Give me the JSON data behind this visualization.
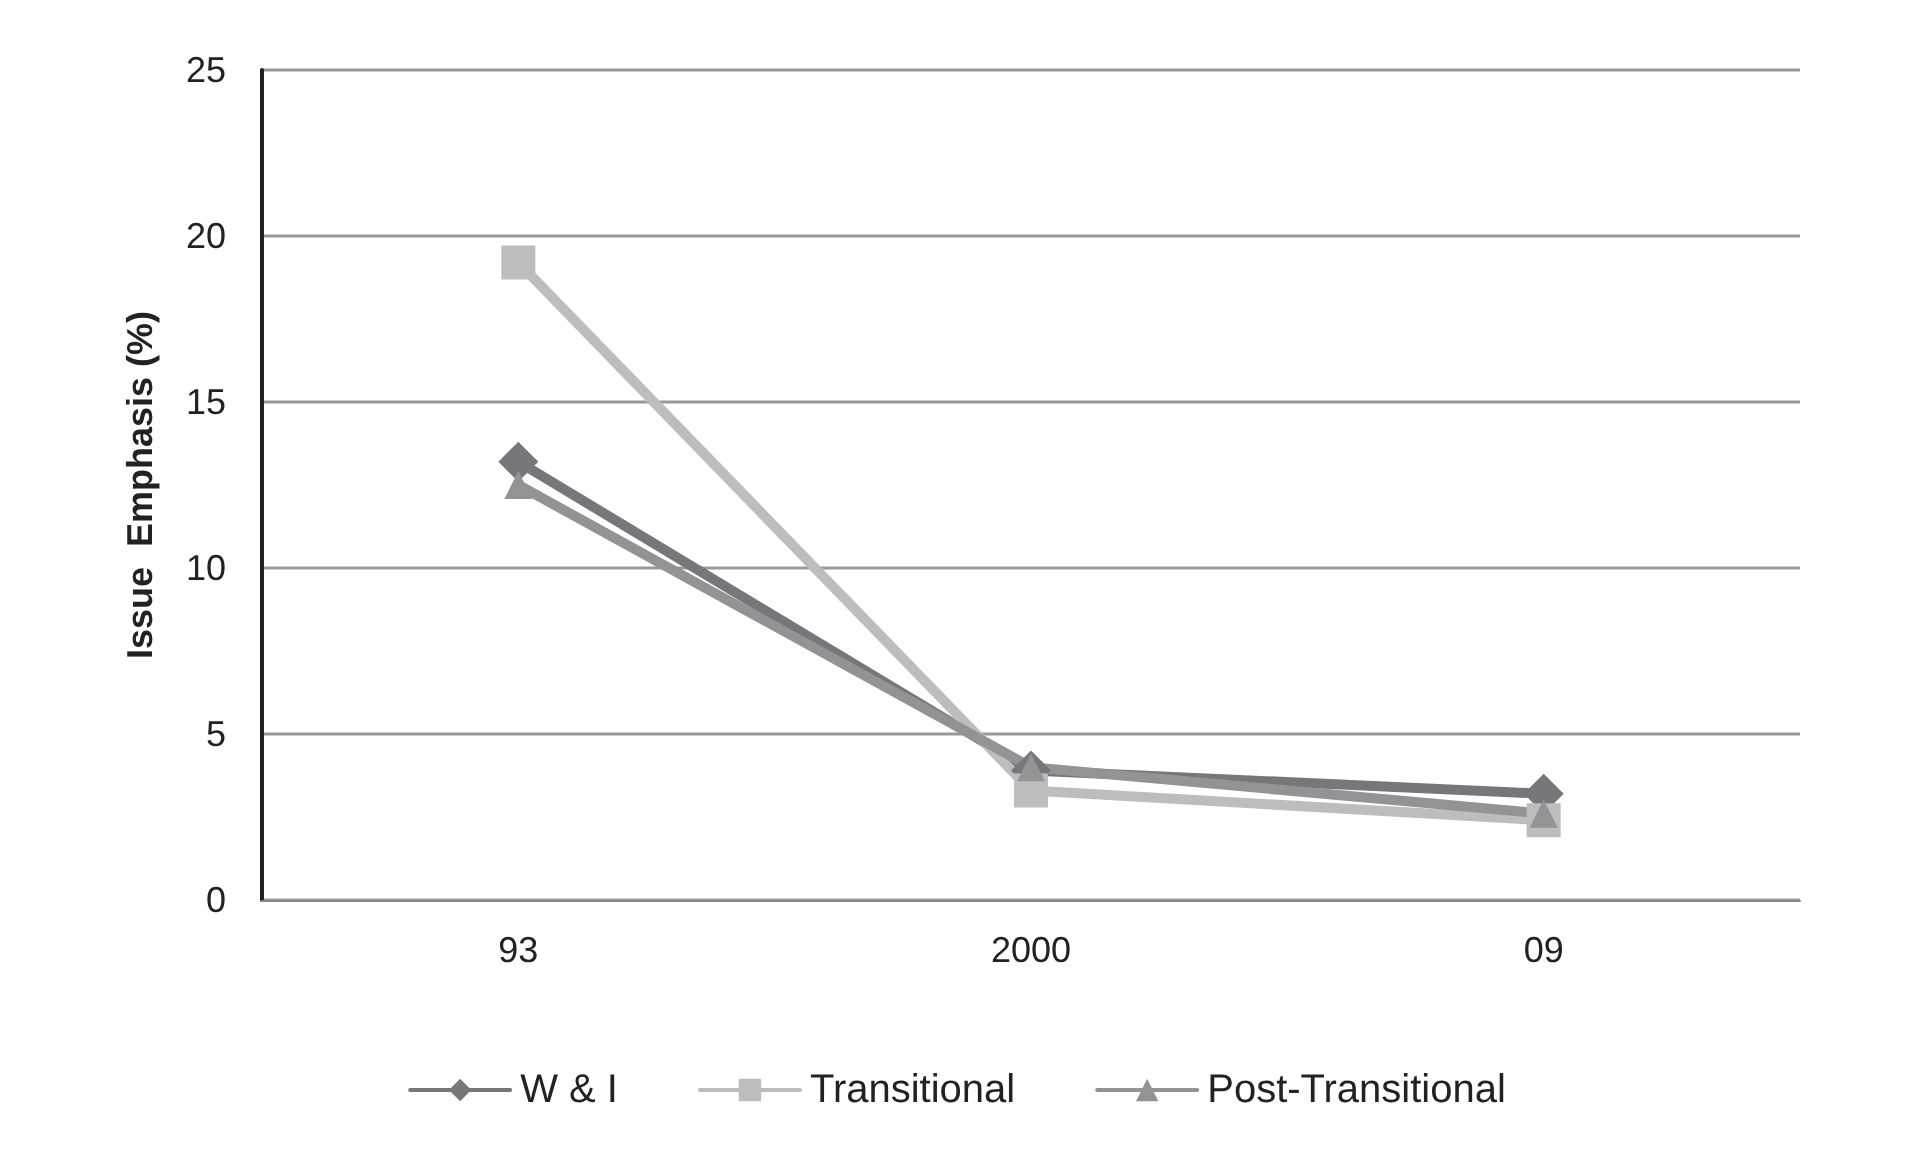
{
  "chart_data": {
    "type": "line",
    "ylabel": "Issue  Emphasis (%)",
    "categories": [
      "93",
      "2000",
      "09"
    ],
    "series": [
      {
        "name": "W & I",
        "color": "#77777b",
        "marker": "diamond",
        "values": [
          13.2,
          3.9,
          3.2
        ]
      },
      {
        "name": "Transitional",
        "color": "#bdbdbf",
        "marker": "square",
        "values": [
          19.2,
          3.3,
          2.4
        ]
      },
      {
        "name": "Post-Transitional",
        "color": "#939396",
        "marker": "triangle",
        "values": [
          12.5,
          4.0,
          2.6
        ]
      }
    ],
    "ylim": [
      0,
      25
    ],
    "yticks": [
      0,
      5,
      10,
      15,
      20,
      25
    ],
    "grid": "y",
    "legend": "bottom",
    "line_style": "solid"
  }
}
